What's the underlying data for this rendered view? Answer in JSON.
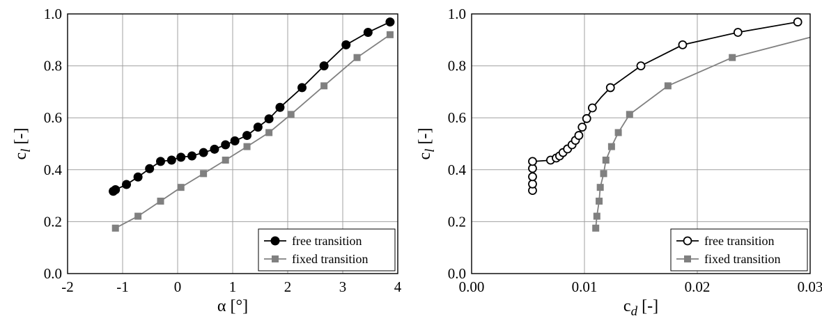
{
  "colors": {
    "free": "#000000",
    "fixed": "#808080",
    "grid": "#a0a0a0"
  },
  "chart_data": [
    {
      "type": "line",
      "xlabel": "α [°]",
      "ylabel": {
        "base": "c",
        "sub": "l",
        "unit": " [-]"
      },
      "xlim": [
        -2,
        4
      ],
      "ylim": [
        0,
        1
      ],
      "xticks": [
        -2,
        -1,
        0,
        1,
        2,
        3,
        4
      ],
      "xtick_labels": [
        "-2",
        "-1",
        "0",
        "1",
        "2",
        "3",
        "4"
      ],
      "yticks": [
        0,
        0.2,
        0.4,
        0.6,
        0.8,
        1.0
      ],
      "ytick_labels": [
        "0.0",
        "0.2",
        "0.4",
        "0.6",
        "0.8",
        "1.0"
      ],
      "grid": true,
      "legend": "bottom-right",
      "series": [
        {
          "name": "free transition",
          "marker": "filled-circle",
          "x": [
            -1.17,
            -1.13,
            -0.93,
            -0.72,
            -0.51,
            -0.31,
            -0.11,
            0.06,
            0.26,
            0.47,
            0.67,
            0.87,
            1.04,
            1.26,
            1.46,
            1.66,
            1.86,
            2.26,
            2.66,
            3.06,
            3.46,
            3.86
          ],
          "y": [
            0.317,
            0.323,
            0.343,
            0.372,
            0.404,
            0.432,
            0.437,
            0.448,
            0.453,
            0.466,
            0.479,
            0.496,
            0.511,
            0.532,
            0.564,
            0.596,
            0.64,
            0.716,
            0.8,
            0.881,
            0.929,
            0.969
          ]
        },
        {
          "name": "fixed transition",
          "marker": "filled-square",
          "x": [
            -1.13,
            -0.72,
            -0.31,
            0.06,
            0.47,
            0.87,
            1.26,
            1.66,
            2.06,
            2.66,
            3.26,
            3.86
          ],
          "y": [
            0.175,
            0.221,
            0.279,
            0.332,
            0.385,
            0.437,
            0.489,
            0.543,
            0.613,
            0.723,
            0.832,
            0.92
          ]
        }
      ]
    },
    {
      "type": "line",
      "xlabel": {
        "base": "c",
        "sub": "d",
        "unit": " [-]"
      },
      "ylabel": {
        "base": "c",
        "sub": "l",
        "unit": " [-]"
      },
      "xlim": [
        0,
        0.03
      ],
      "ylim": [
        0,
        1
      ],
      "xticks": [
        0,
        0.01,
        0.02,
        0.03
      ],
      "xtick_labels": [
        "0.00",
        "0.01",
        "0.02",
        "0.03"
      ],
      "yticks": [
        0,
        0.2,
        0.4,
        0.6,
        0.8,
        1.0
      ],
      "ytick_labels": [
        "0.0",
        "0.2",
        "0.4",
        "0.6",
        "0.8",
        "1.0"
      ],
      "grid": true,
      "legend": "bottom-right",
      "series": [
        {
          "name": "free transition",
          "marker": "open-circle",
          "x": [
            0.0054,
            0.0054,
            0.0054,
            0.0054,
            0.0054,
            0.007,
            0.0075,
            0.0078,
            0.0081,
            0.0085,
            0.0089,
            0.0092,
            0.0095,
            0.0098,
            0.0102,
            0.0107,
            0.0123,
            0.015,
            0.0187,
            0.0236,
            0.0289
          ],
          "y": [
            0.32,
            0.345,
            0.373,
            0.405,
            0.432,
            0.437,
            0.445,
            0.453,
            0.466,
            0.48,
            0.496,
            0.513,
            0.532,
            0.564,
            0.597,
            0.638,
            0.716,
            0.8,
            0.881,
            0.929,
            0.969
          ],
          "curve_to": [
            [
              0.0055,
              0.432
            ],
            [
              0.0065,
              0.435
            ],
            [
              0.007,
              0.437
            ],
            [
              0.0078,
              0.452
            ],
            [
              0.0086,
              0.48
            ],
            [
              0.0093,
              0.513
            ],
            [
              0.0098,
              0.564
            ],
            [
              0.0102,
              0.597
            ],
            [
              0.0107,
              0.638
            ],
            [
              0.0115,
              0.68
            ],
            [
              0.0123,
              0.716
            ],
            [
              0.015,
              0.8
            ],
            [
              0.0187,
              0.881
            ],
            [
              0.0236,
              0.929
            ],
            [
              0.0289,
              0.969
            ]
          ]
        },
        {
          "name": "fixed transition",
          "marker": "filled-square",
          "x": [
            0.011,
            0.0111,
            0.0113,
            0.0114,
            0.0117,
            0.0119,
            0.0124,
            0.013,
            0.014,
            0.0174,
            0.0231
          ],
          "y": [
            0.175,
            0.221,
            0.279,
            0.332,
            0.385,
            0.437,
            0.489,
            0.543,
            0.613,
            0.723,
            0.832
          ],
          "extend_to": [
            0.03,
            0.91
          ]
        }
      ]
    }
  ]
}
